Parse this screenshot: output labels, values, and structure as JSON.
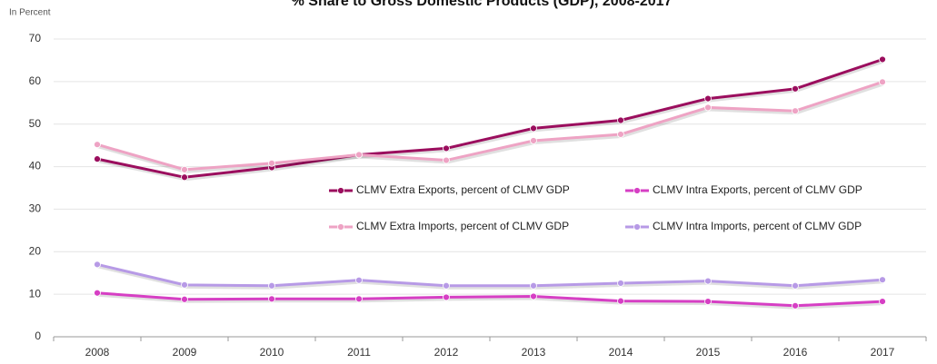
{
  "chart_data": {
    "type": "line",
    "title": "% Share to Gross Domestic Products (GDP), 2008-2017",
    "y_label": "In Percent",
    "categories": [
      "2008",
      "2009",
      "2010",
      "2011",
      "2012",
      "2013",
      "2014",
      "2015",
      "2016",
      "2017"
    ],
    "series": [
      {
        "name": "CLMV Extra Exports, percent of CLMV GDP",
        "color": "#9b0e5e",
        "values": [
          41.8,
          37.5,
          39.8,
          42.8,
          44.3,
          49.0,
          50.9,
          56.0,
          58.3,
          65.2
        ]
      },
      {
        "name": "CLMV Intra Exports, percent of CLMV GDP",
        "color": "#d63fc4",
        "values": [
          10.3,
          8.8,
          8.9,
          8.9,
          9.3,
          9.5,
          8.4,
          8.3,
          7.3,
          8.3
        ]
      },
      {
        "name": "CLMV Extra Imports, percent of CLMV GDP",
        "color": "#eea3c4",
        "values": [
          45.2,
          39.3,
          40.8,
          42.8,
          41.5,
          46.1,
          47.6,
          53.9,
          53.1,
          59.9
        ]
      },
      {
        "name": "CLMV Intra Imports, percent of CLMV GDP",
        "color": "#b79ae6",
        "values": [
          17.0,
          12.2,
          12.0,
          13.3,
          12.0,
          12.0,
          12.6,
          13.1,
          12.0,
          13.4
        ]
      }
    ],
    "ylim": [
      0,
      70
    ],
    "yticks": [
      0,
      10,
      20,
      30,
      40,
      50,
      60,
      70
    ],
    "grid": true
  }
}
